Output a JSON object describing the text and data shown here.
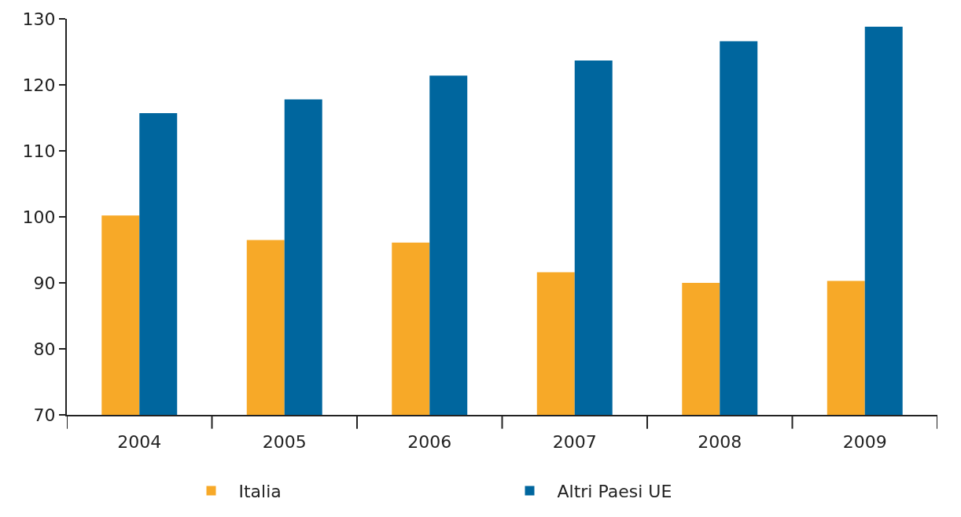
{
  "chart_data": {
    "type": "bar",
    "categories": [
      "2004",
      "2005",
      "2006",
      "2007",
      "2008",
      "2009"
    ],
    "series": [
      {
        "name": "Italia",
        "color": "#f7a928",
        "values": [
          100.2,
          96.5,
          96.1,
          91.6,
          90.0,
          90.3
        ]
      },
      {
        "name": "Altri Paesi UE",
        "color": "#00669e",
        "values": [
          115.7,
          117.8,
          121.4,
          123.7,
          126.6,
          128.8
        ]
      }
    ],
    "ylim": [
      70,
      130
    ],
    "yticks": [
      70,
      80,
      90,
      100,
      110,
      120,
      130
    ],
    "legend": "bottom"
  }
}
